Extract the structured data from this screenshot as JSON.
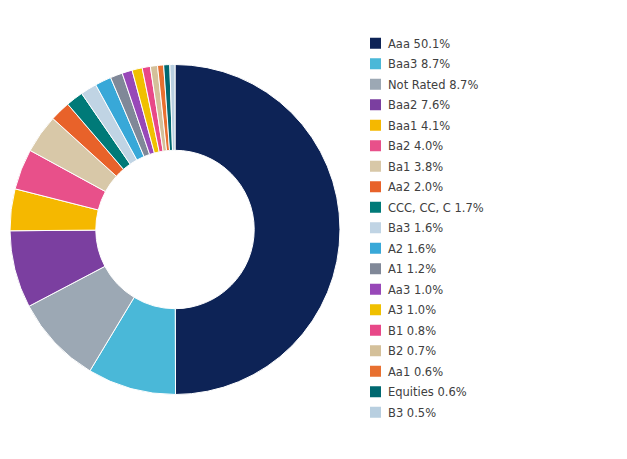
{
  "chart_data": {
    "type": "donut",
    "categories": [
      "Aaa 50.1%",
      "Baa3 8.7%",
      "Not Rated 8.7%",
      "Baa2 7.6%",
      "Baa1 4.1%",
      "Ba2 4.0%",
      "Ba1 3.8%",
      "Aa2 2.0%",
      "CCC, CC, C 1.7%",
      "Ba3 1.6%",
      "A2 1.6%",
      "A1 1.2%",
      "Aa3 1.0%",
      "A3 1.0%",
      "B1 0.8%",
      "B2 0.7%",
      "Aa1 0.6%",
      "Equities 0.6%",
      "B3 0.5%"
    ],
    "values": [
      50.1,
      8.7,
      8.7,
      7.6,
      4.1,
      4.0,
      3.8,
      2.0,
      1.7,
      1.6,
      1.6,
      1.2,
      1.0,
      1.0,
      0.8,
      0.7,
      0.6,
      0.6,
      0.5
    ],
    "colors": [
      "#0d2356",
      "#4ab8d8",
      "#9ca8b4",
      "#7b3fa0",
      "#f5b800",
      "#e8508a",
      "#d8c8a8",
      "#e8622a",
      "#007a78",
      "#c0d4e4",
      "#38a8d8",
      "#808898",
      "#9848b8",
      "#f0c000",
      "#e84888",
      "#d4c09a",
      "#e87030",
      "#006870",
      "#b8cfe0"
    ],
    "legend": "right"
  }
}
